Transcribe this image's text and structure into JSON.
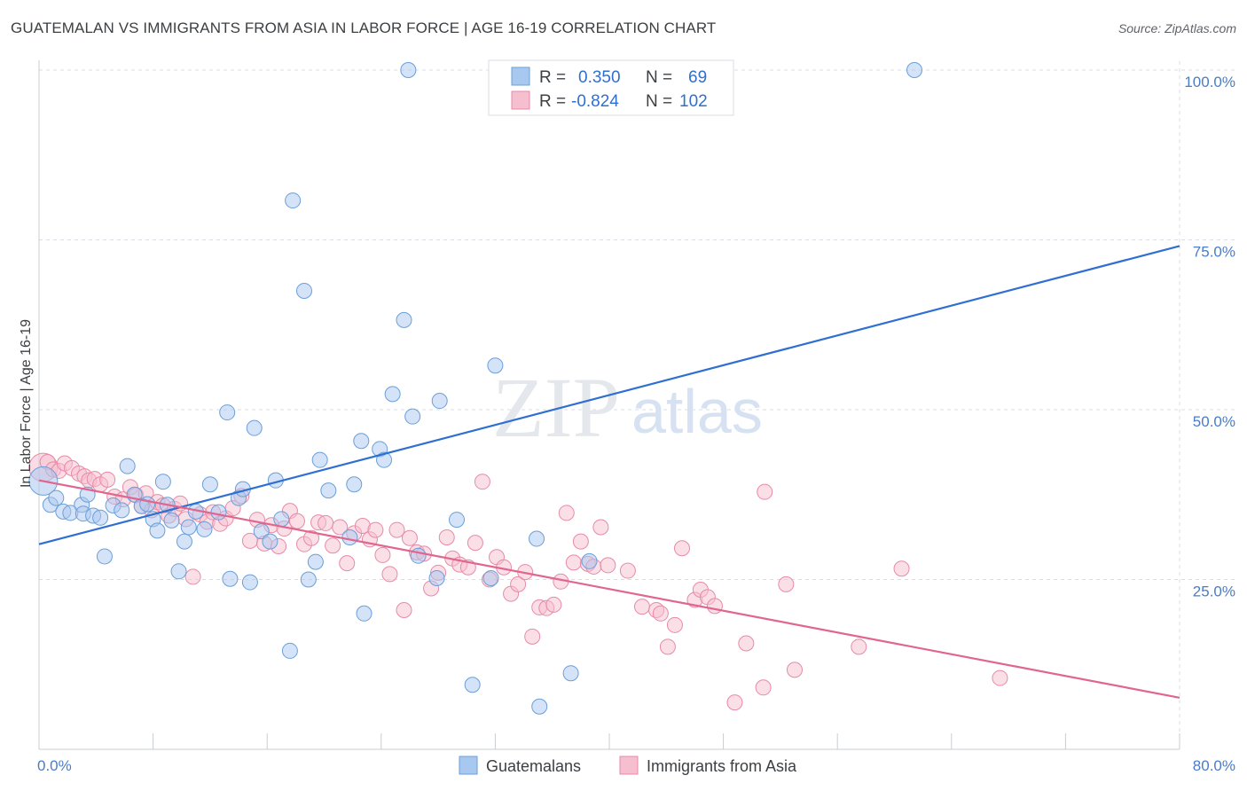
{
  "title": "GUATEMALAN VS IMMIGRANTS FROM ASIA IN LABOR FORCE | AGE 16-19 CORRELATION CHART",
  "source": "Source: ZipAtlas.com",
  "watermark": {
    "zip": "ZIP",
    "atlas": "atlas"
  },
  "colors": {
    "blue_fill": "#a9c8f0",
    "blue_stroke": "#6b9fd8",
    "blue_line": "#2f6fd1",
    "pink_fill": "#f6bfd0",
    "pink_stroke": "#e88aa8",
    "pink_line": "#e0658f",
    "grid": "#d9dde3",
    "tick_text": "#4a7cc7"
  },
  "legend": {
    "rows": [
      {
        "r_label": "R =",
        "r_value": "0.350",
        "n_label": "N =",
        "n_value": "69",
        "color": "blue"
      },
      {
        "r_label": "R =",
        "r_value": "-0.824",
        "n_label": "N =",
        "n_value": "102",
        "color": "pink"
      }
    ]
  },
  "bottom_legend": [
    "Guatemalans",
    "Immigrants from Asia"
  ],
  "chart_data": {
    "type": "scatter",
    "title": "GUATEMALAN VS IMMIGRANTS FROM ASIA IN LABOR FORCE | AGE 16-19 CORRELATION CHART",
    "xlabel": "",
    "ylabel": "In Labor Force | Age 16-19",
    "xlim": [
      0,
      80
    ],
    "ylim": [
      0,
      100
    ],
    "x_tick_labels": [
      "0.0%",
      "80.0%"
    ],
    "y_tick_values": [
      25,
      50,
      75,
      100
    ],
    "y_tick_labels": [
      "25.0%",
      "50.0%",
      "75.0%",
      "100.0%"
    ],
    "grid": true,
    "legend_position": "top-center",
    "series": [
      {
        "name": "Guatemalans",
        "color": "blue",
        "R": 0.35,
        "N": 69,
        "trend": {
          "x": [
            0,
            80
          ],
          "y": [
            30.2,
            74.1
          ]
        },
        "points": [
          [
            0.3,
            39.5
          ],
          [
            0.8,
            36.0
          ],
          [
            1.2,
            37.0
          ],
          [
            1.7,
            35.0
          ],
          [
            2.2,
            34.8
          ],
          [
            3.0,
            36.0
          ],
          [
            3.1,
            34.7
          ],
          [
            3.4,
            37.5
          ],
          [
            3.8,
            34.4
          ],
          [
            4.3,
            34.1
          ],
          [
            4.6,
            28.4
          ],
          [
            5.2,
            35.9
          ],
          [
            5.8,
            35.2
          ],
          [
            6.2,
            41.7
          ],
          [
            6.7,
            37.5
          ],
          [
            7.2,
            35.8
          ],
          [
            7.6,
            36.1
          ],
          [
            8.0,
            33.9
          ],
          [
            8.3,
            32.2
          ],
          [
            8.7,
            39.4
          ],
          [
            9.0,
            36.0
          ],
          [
            9.3,
            33.7
          ],
          [
            9.8,
            26.2
          ],
          [
            10.2,
            30.6
          ],
          [
            10.5,
            32.7
          ],
          [
            11.0,
            35.0
          ],
          [
            11.6,
            32.4
          ],
          [
            12.0,
            39.0
          ],
          [
            12.6,
            34.9
          ],
          [
            13.2,
            49.6
          ],
          [
            13.4,
            25.1
          ],
          [
            14.0,
            37.0
          ],
          [
            14.3,
            38.3
          ],
          [
            14.8,
            24.6
          ],
          [
            15.1,
            47.3
          ],
          [
            15.6,
            32.1
          ],
          [
            16.2,
            30.6
          ],
          [
            16.6,
            39.6
          ],
          [
            17.0,
            33.9
          ],
          [
            17.6,
            14.5
          ],
          [
            17.8,
            80.8
          ],
          [
            18.6,
            67.5
          ],
          [
            18.9,
            25.0
          ],
          [
            19.4,
            27.6
          ],
          [
            19.7,
            42.6
          ],
          [
            20.3,
            38.1
          ],
          [
            21.8,
            31.2
          ],
          [
            22.1,
            39.0
          ],
          [
            22.6,
            45.4
          ],
          [
            22.8,
            20.0
          ],
          [
            23.9,
            44.2
          ],
          [
            24.2,
            42.6
          ],
          [
            24.8,
            52.3
          ],
          [
            25.6,
            63.2
          ],
          [
            25.9,
            100
          ],
          [
            26.2,
            49.0
          ],
          [
            26.6,
            28.5
          ],
          [
            27.9,
            25.2
          ],
          [
            28.1,
            51.3
          ],
          [
            29.3,
            33.8
          ],
          [
            30.4,
            9.5
          ],
          [
            31.7,
            25.2
          ],
          [
            32.0,
            56.5
          ],
          [
            34.9,
            31.0
          ],
          [
            35.1,
            6.3
          ],
          [
            37.3,
            11.2
          ],
          [
            38.6,
            27.7
          ],
          [
            61.4,
            100
          ]
        ]
      },
      {
        "name": "Immigrants from Asia",
        "color": "pink",
        "R": -0.824,
        "N": 102,
        "trend": {
          "x": [
            0,
            80
          ],
          "y": [
            39.6,
            7.6
          ]
        },
        "points": [
          [
            0.3,
            41.5
          ],
          [
            0.6,
            42.3
          ],
          [
            1.0,
            41.2
          ],
          [
            1.4,
            41.0
          ],
          [
            1.8,
            42.1
          ],
          [
            2.3,
            41.4
          ],
          [
            2.8,
            40.6
          ],
          [
            3.2,
            40.2
          ],
          [
            3.5,
            39.6
          ],
          [
            3.9,
            39.8
          ],
          [
            4.3,
            39.0
          ],
          [
            4.8,
            39.7
          ],
          [
            5.3,
            37.2
          ],
          [
            5.9,
            36.8
          ],
          [
            6.4,
            38.6
          ],
          [
            6.8,
            37.4
          ],
          [
            7.2,
            35.8
          ],
          [
            7.5,
            37.7
          ],
          [
            7.9,
            35.2
          ],
          [
            8.3,
            36.4
          ],
          [
            8.7,
            35.9
          ],
          [
            9.1,
            34.4
          ],
          [
            9.5,
            35.4
          ],
          [
            9.9,
            36.2
          ],
          [
            10.3,
            33.9
          ],
          [
            10.8,
            25.4
          ],
          [
            11.3,
            34.6
          ],
          [
            11.8,
            33.5
          ],
          [
            12.2,
            34.9
          ],
          [
            12.7,
            33.2
          ],
          [
            13.1,
            34.0
          ],
          [
            13.6,
            35.5
          ],
          [
            14.2,
            37.3
          ],
          [
            14.8,
            30.7
          ],
          [
            15.3,
            33.8
          ],
          [
            15.8,
            30.3
          ],
          [
            16.3,
            33.0
          ],
          [
            16.8,
            29.9
          ],
          [
            17.2,
            32.5
          ],
          [
            17.6,
            35.1
          ],
          [
            18.1,
            33.6
          ],
          [
            18.6,
            30.2
          ],
          [
            19.1,
            31.1
          ],
          [
            19.6,
            33.4
          ],
          [
            20.1,
            33.3
          ],
          [
            20.6,
            30.0
          ],
          [
            21.1,
            32.7
          ],
          [
            21.6,
            27.4
          ],
          [
            22.1,
            31.8
          ],
          [
            22.7,
            32.9
          ],
          [
            23.2,
            30.9
          ],
          [
            23.6,
            32.3
          ],
          [
            24.1,
            28.6
          ],
          [
            24.6,
            25.8
          ],
          [
            25.1,
            32.3
          ],
          [
            25.6,
            20.5
          ],
          [
            26.0,
            31.1
          ],
          [
            26.5,
            29.0
          ],
          [
            27.0,
            28.8
          ],
          [
            27.5,
            23.7
          ],
          [
            28.0,
            26.0
          ],
          [
            28.6,
            31.2
          ],
          [
            29.0,
            28.1
          ],
          [
            29.5,
            27.2
          ],
          [
            30.1,
            26.8
          ],
          [
            30.6,
            30.4
          ],
          [
            31.1,
            39.4
          ],
          [
            31.6,
            25.0
          ],
          [
            32.1,
            28.3
          ],
          [
            32.6,
            26.8
          ],
          [
            33.1,
            22.9
          ],
          [
            33.6,
            24.3
          ],
          [
            34.1,
            26.1
          ],
          [
            34.6,
            16.6
          ],
          [
            35.1,
            20.9
          ],
          [
            35.6,
            20.8
          ],
          [
            36.1,
            21.3
          ],
          [
            36.6,
            24.7
          ],
          [
            37.0,
            34.8
          ],
          [
            37.5,
            27.5
          ],
          [
            38.0,
            30.6
          ],
          [
            38.5,
            27.3
          ],
          [
            38.9,
            26.9
          ],
          [
            39.4,
            32.7
          ],
          [
            39.9,
            27.1
          ],
          [
            41.3,
            26.3
          ],
          [
            42.3,
            21.0
          ],
          [
            43.3,
            20.5
          ],
          [
            43.6,
            20.0
          ],
          [
            44.1,
            15.1
          ],
          [
            44.6,
            18.3
          ],
          [
            45.1,
            29.6
          ],
          [
            46.0,
            22.0
          ],
          [
            46.4,
            23.5
          ],
          [
            46.9,
            22.4
          ],
          [
            47.4,
            21.1
          ],
          [
            49.6,
            15.6
          ],
          [
            50.8,
            9.1
          ],
          [
            50.9,
            37.9
          ],
          [
            52.4,
            24.3
          ],
          [
            57.5,
            15.1
          ],
          [
            60.5,
            26.6
          ],
          [
            67.4,
            10.5
          ],
          [
            48.8,
            6.9
          ],
          [
            53.0,
            11.7
          ]
        ]
      }
    ]
  }
}
